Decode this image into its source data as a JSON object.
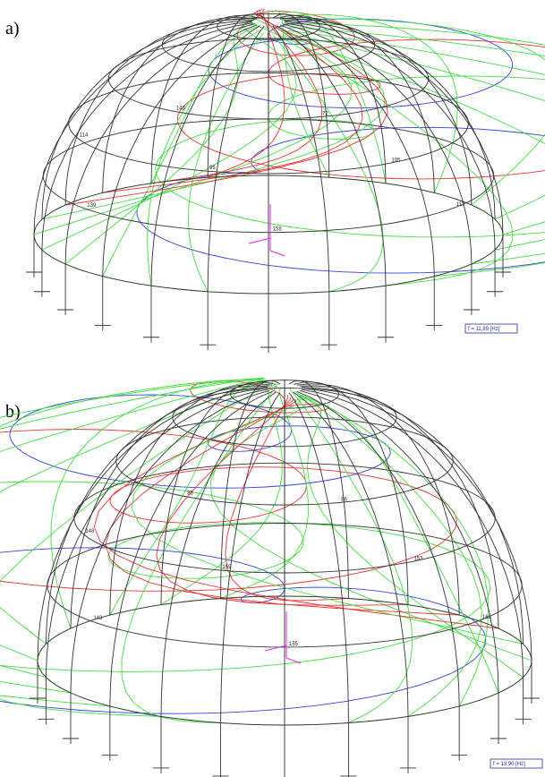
{
  "panels": [
    {
      "label": "a)",
      "frequency": "f = 11,89 [Hz]",
      "node_labels": [
        "117",
        "105",
        "72",
        "158",
        "95",
        "143",
        "139",
        "114"
      ]
    },
    {
      "label": "b)",
      "frequency": "f = 13,90 [Hz]",
      "node_labels": [
        "161",
        "153",
        "86",
        "155",
        "159",
        "85",
        "143",
        "148"
      ]
    }
  ]
}
